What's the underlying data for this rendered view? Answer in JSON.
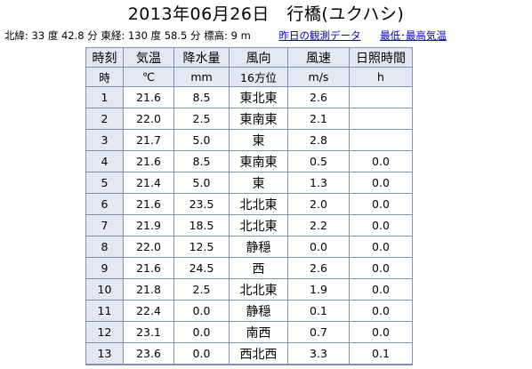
{
  "title": "2013年06月26日　行橋(ユクハシ)",
  "meta": {
    "lat": "北緯: 33 度 42.8 分",
    "lon": "東経: 130 度 58.5 分",
    "elev": "標高: 9 m",
    "link_prev": "昨日の観測データ",
    "link_minmax": "最低･最高気温"
  },
  "headers": [
    "時刻",
    "気温",
    "降水量",
    "風向",
    "風速",
    "日照時間"
  ],
  "units": [
    "時",
    "℃",
    "mm",
    "16方位",
    "m/s",
    "h"
  ],
  "rows": [
    [
      "1",
      "21.6",
      "8.5",
      "東北東",
      "2.6",
      ""
    ],
    [
      "2",
      "22.0",
      "2.5",
      "東南東",
      "2.1",
      ""
    ],
    [
      "3",
      "21.7",
      "5.0",
      "東",
      "2.8",
      ""
    ],
    [
      "4",
      "21.6",
      "8.5",
      "東南東",
      "0.5",
      "0.0"
    ],
    [
      "5",
      "21.4",
      "5.0",
      "東",
      "1.3",
      "0.0"
    ],
    [
      "6",
      "21.6",
      "23.5",
      "北北東",
      "2.0",
      "0.0"
    ],
    [
      "7",
      "21.9",
      "18.5",
      "北北東",
      "2.2",
      "0.0"
    ],
    [
      "8",
      "22.0",
      "12.5",
      "静穏",
      "0.0",
      "0.0"
    ],
    [
      "9",
      "21.6",
      "24.5",
      "西",
      "2.6",
      "0.0"
    ],
    [
      "10",
      "21.8",
      "2.5",
      "北北東",
      "1.9",
      "0.0"
    ],
    [
      "11",
      "22.4",
      "0.0",
      "静穏",
      "0.1",
      "0.0"
    ],
    [
      "12",
      "23.1",
      "0.0",
      "南西",
      "0.7",
      "0.0"
    ],
    [
      "13",
      "23.6",
      "0.0",
      "西北西",
      "3.3",
      "0.1"
    ]
  ]
}
